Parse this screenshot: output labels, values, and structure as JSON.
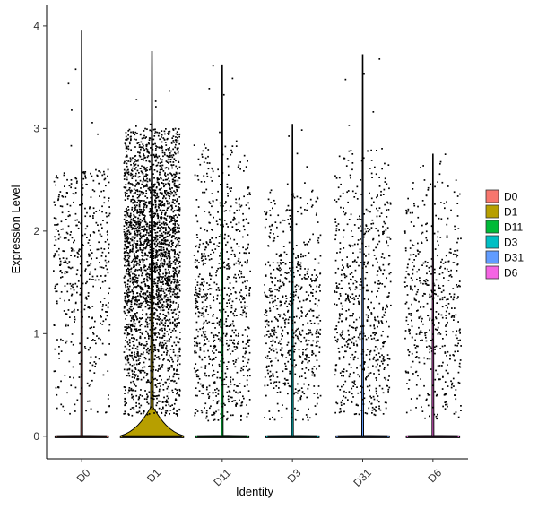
{
  "chart_data": {
    "type": "violin",
    "title": "",
    "xlabel": "Identity",
    "ylabel": "Expression Level",
    "ylim": [
      -0.22,
      4.2
    ],
    "yticks": [
      0,
      1,
      2,
      3,
      4
    ],
    "categories": [
      "D0",
      "D1",
      "D11",
      "D3",
      "D31",
      "D6"
    ],
    "colors": [
      "#F8766D",
      "#B79F00",
      "#00BA38",
      "#00BFC4",
      "#619CFF",
      "#F564E3"
    ],
    "max_values": [
      3.95,
      3.75,
      3.62,
      3.04,
      3.72,
      2.75
    ],
    "zero_spike_halfwidth": [
      0.38,
      0.45,
      0.38,
      0.38,
      0.38,
      0.38
    ],
    "zero_bulge_height": [
      0.02,
      0.28,
      0.02,
      0.02,
      0.02,
      0.02
    ],
    "nonzero_points": [
      480,
      2600,
      780,
      620,
      640,
      480
    ],
    "nonzero_range": [
      [
        0.2,
        2.6
      ],
      [
        0.2,
        3.0
      ],
      [
        0.15,
        2.85
      ],
      [
        0.15,
        2.4
      ],
      [
        0.2,
        2.8
      ],
      [
        0.15,
        2.5
      ]
    ],
    "nonzero_center": [
      1.8,
      1.75,
      1.1,
      1.2,
      1.2,
      1.2
    ],
    "legend": {
      "position": "right",
      "entries": [
        "D0",
        "D1",
        "D11",
        "D3",
        "D31",
        "D6"
      ]
    },
    "grid": false
  }
}
